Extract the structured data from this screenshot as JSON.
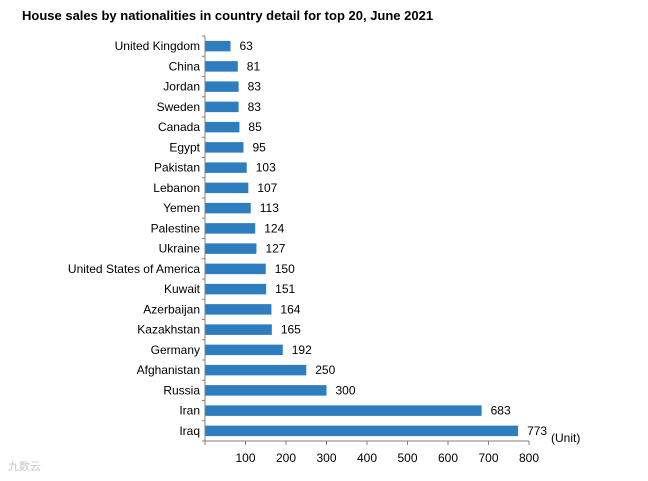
{
  "chart_data": {
    "type": "bar",
    "orientation": "horizontal",
    "title": "House sales by nationalities in country detail for top 20, June 2021",
    "categories": [
      "United Kingdom",
      "China",
      "Jordan",
      "Sweden",
      "Canada",
      "Egypt",
      "Pakistan",
      "Lebanon",
      "Yemen",
      "Palestine",
      "Ukraine",
      "United States of America",
      "Kuwait",
      "Azerbaijan",
      "Kazakhstan",
      "Germany",
      "Afghanistan",
      "Russia",
      "Iran",
      "Iraq"
    ],
    "values": [
      63,
      81,
      83,
      83,
      85,
      95,
      103,
      107,
      113,
      124,
      127,
      150,
      151,
      164,
      165,
      192,
      250,
      300,
      683,
      773
    ],
    "xlim": [
      0,
      800
    ],
    "xticks": [
      100,
      200,
      300,
      400,
      500,
      600,
      700,
      800
    ],
    "unit": "(Unit)",
    "bar_color": "#2e7ebf",
    "grid": false,
    "legend": "none"
  },
  "watermark": "九数云"
}
